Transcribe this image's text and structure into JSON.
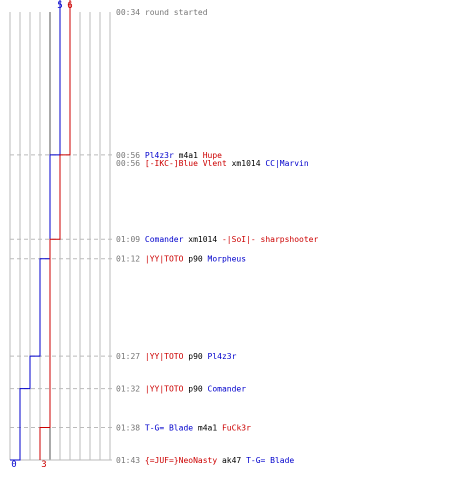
{
  "chart_data": {
    "type": "line",
    "x_unit": "players alive",
    "xlim": [
      0,
      10
    ],
    "series": [
      {
        "color": "#0000cc",
        "start_count": 5,
        "end_count": 0,
        "steps": [
          {
            "time": "00:34",
            "count": 5
          },
          {
            "time": "00:56",
            "count": 4
          },
          {
            "time": "01:12",
            "count": 3
          },
          {
            "time": "01:27",
            "count": 2
          },
          {
            "time": "01:32",
            "count": 1
          },
          {
            "time": "01:43",
            "count": 0
          }
        ]
      },
      {
        "color": "#cc0000",
        "start_count": 6,
        "end_count": 3,
        "steps": [
          {
            "time": "00:34",
            "count": 6
          },
          {
            "time": "00:56",
            "count": 5
          },
          {
            "time": "01:09",
            "count": 4
          },
          {
            "time": "01:38",
            "count": 3
          },
          {
            "time": "01:43",
            "count": 3
          }
        ]
      }
    ],
    "events": [
      {
        "time": "00:34",
        "parts": [
          {
            "text": "round started",
            "color": "#777777"
          }
        ]
      },
      {
        "time": "00:56",
        "parts": [
          {
            "text": "Pl4z3r",
            "color": "#0000cc"
          },
          {
            "text": "m4a1",
            "color": "#000000"
          },
          {
            "text": "Hupe",
            "color": "#cc0000"
          }
        ]
      },
      {
        "time": "00:56",
        "parts": [
          {
            "text": "[-IKC-]Blue Vlent",
            "color": "#cc0000"
          },
          {
            "text": "xm1014",
            "color": "#000000"
          },
          {
            "text": "CC|Marvin",
            "color": "#0000cc"
          }
        ]
      },
      {
        "time": "01:09",
        "parts": [
          {
            "text": "Comander",
            "color": "#0000cc"
          },
          {
            "text": "xm1014",
            "color": "#000000"
          },
          {
            "text": "-|SoI|- sharpshooter",
            "color": "#cc0000"
          }
        ]
      },
      {
        "time": "01:12",
        "parts": [
          {
            "text": "|YY|TOTO",
            "color": "#cc0000"
          },
          {
            "text": "p90",
            "color": "#000000"
          },
          {
            "text": "Morpheus",
            "color": "#0000cc"
          }
        ]
      },
      {
        "time": "01:27",
        "parts": [
          {
            "text": "|YY|TOTO",
            "color": "#cc0000"
          },
          {
            "text": "p90",
            "color": "#000000"
          },
          {
            "text": "Pl4z3r",
            "color": "#0000cc"
          }
        ]
      },
      {
        "time": "01:32",
        "parts": [
          {
            "text": "|YY|TOTO",
            "color": "#cc0000"
          },
          {
            "text": "p90",
            "color": "#000000"
          },
          {
            "text": "Comander",
            "color": "#0000cc"
          }
        ]
      },
      {
        "time": "01:38",
        "parts": [
          {
            "text": "T-G= Blade",
            "color": "#0000cc"
          },
          {
            "text": "m4a1",
            "color": "#000000"
          },
          {
            "text": "FuCk3r",
            "color": "#cc0000"
          }
        ]
      },
      {
        "time": "01:43",
        "parts": [
          {
            "text": "{=JUF=}NeoNasty",
            "color": "#cc0000"
          },
          {
            "text": "ak47",
            "color": "#000000"
          },
          {
            "text": "T-G= Blade",
            "color": "#0000cc"
          }
        ]
      }
    ],
    "grid": true,
    "colors": {
      "grid": "#bbbbbb",
      "dashed": "#bbbbbb",
      "time": "#777777",
      "middle_grid": "#555555"
    }
  }
}
